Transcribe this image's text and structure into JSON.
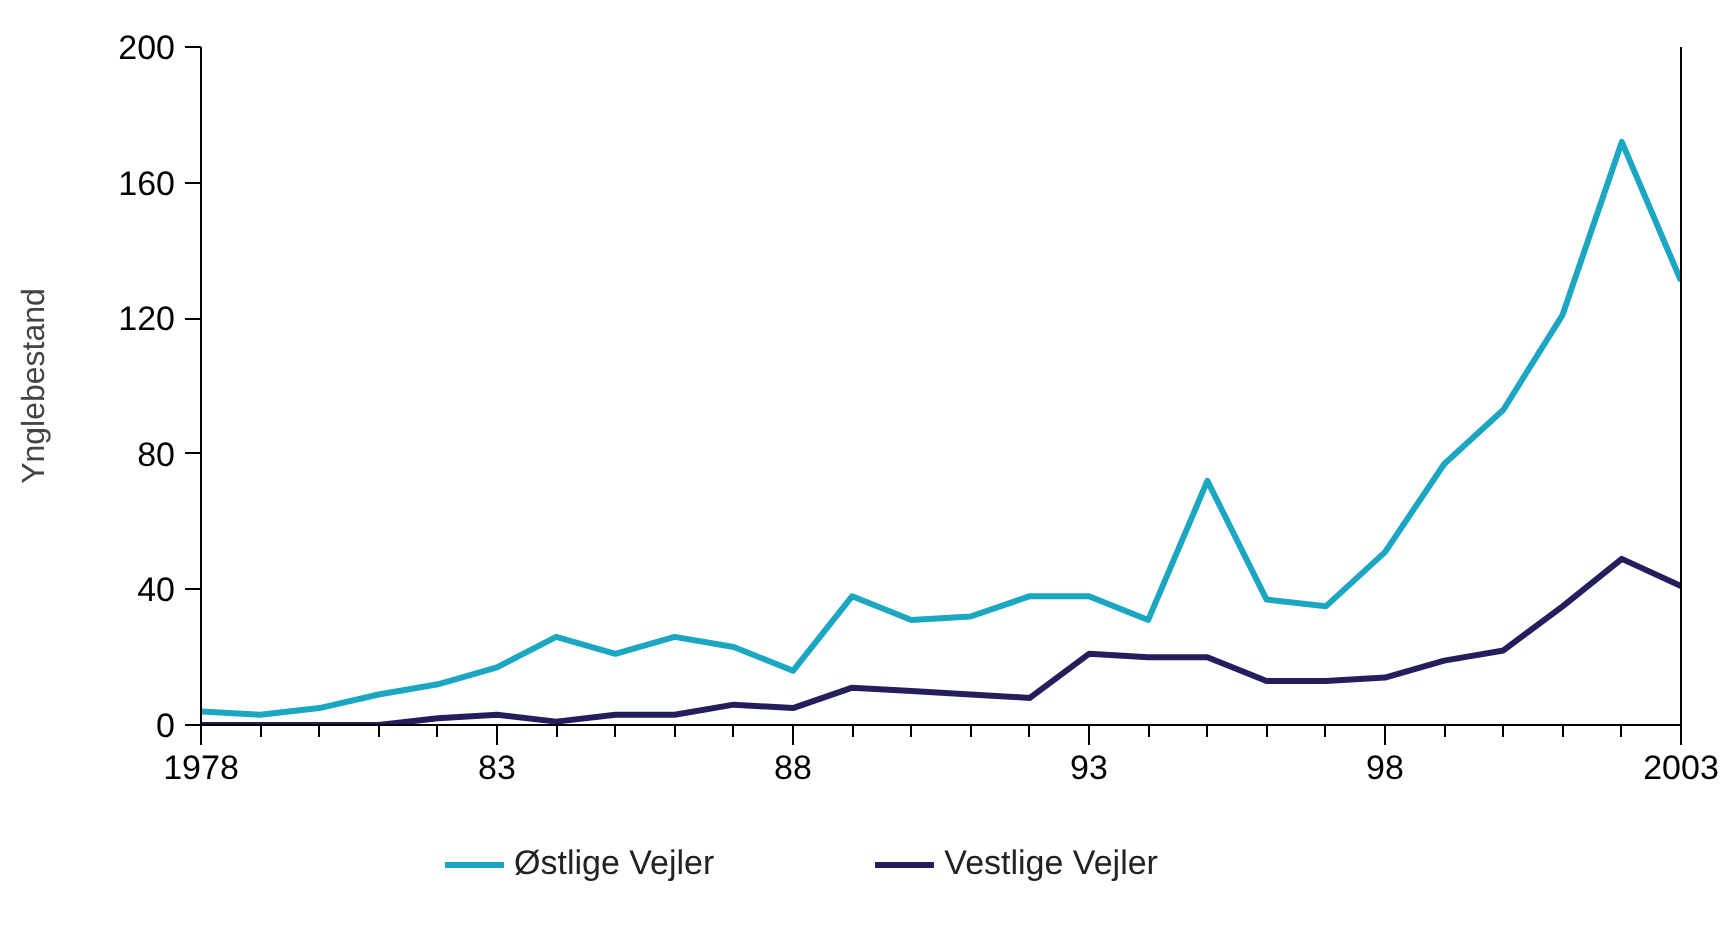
{
  "chart_data": {
    "type": "line",
    "ylabel": "Ynglebestand",
    "x": [
      1978,
      1979,
      1980,
      1981,
      1982,
      1983,
      1984,
      1985,
      1986,
      1987,
      1988,
      1989,
      1990,
      1991,
      1992,
      1993,
      1994,
      1995,
      1996,
      1997,
      1998,
      1999,
      2000,
      2001,
      2002,
      2003
    ],
    "series": [
      {
        "name": "Østlige Vejler",
        "color": "#1ba6c1",
        "values": [
          4,
          3,
          5,
          9,
          12,
          17,
          26,
          21,
          26,
          23,
          16,
          38,
          31,
          32,
          38,
          38,
          31,
          72,
          37,
          35,
          51,
          77,
          93,
          121,
          172,
          131
        ]
      },
      {
        "name": "Vestlige Vejler",
        "color": "#241f5c",
        "values": [
          0,
          0,
          0,
          0,
          2,
          3,
          1,
          3,
          3,
          6,
          5,
          11,
          10,
          9,
          8,
          21,
          20,
          20,
          13,
          13,
          14,
          19,
          22,
          35,
          49,
          41
        ]
      }
    ],
    "xlim": [
      1978,
      2003
    ],
    "ylim": [
      0,
      200
    ],
    "xticks": [
      {
        "value": 1978,
        "label": "1978"
      },
      {
        "value": 1979,
        "label": null
      },
      {
        "value": 1980,
        "label": null
      },
      {
        "value": 1981,
        "label": null
      },
      {
        "value": 1982,
        "label": null
      },
      {
        "value": 1983,
        "label": "83"
      },
      {
        "value": 1984,
        "label": null
      },
      {
        "value": 1985,
        "label": null
      },
      {
        "value": 1986,
        "label": null
      },
      {
        "value": 1987,
        "label": null
      },
      {
        "value": 1988,
        "label": "88"
      },
      {
        "value": 1989,
        "label": null
      },
      {
        "value": 1990,
        "label": null
      },
      {
        "value": 1991,
        "label": null
      },
      {
        "value": 1992,
        "label": null
      },
      {
        "value": 1993,
        "label": "93"
      },
      {
        "value": 1994,
        "label": null
      },
      {
        "value": 1995,
        "label": null
      },
      {
        "value": 1996,
        "label": null
      },
      {
        "value": 1997,
        "label": null
      },
      {
        "value": 1998,
        "label": "98"
      },
      {
        "value": 1999,
        "label": null
      },
      {
        "value": 2000,
        "label": null
      },
      {
        "value": 2001,
        "label": null
      },
      {
        "value": 2002,
        "label": null
      },
      {
        "value": 2003,
        "label": "2003"
      }
    ],
    "yticks": [
      0,
      40,
      80,
      120,
      160,
      200
    ],
    "grid": false,
    "legend": "bottom",
    "marker": "none",
    "line_style": "solid"
  }
}
